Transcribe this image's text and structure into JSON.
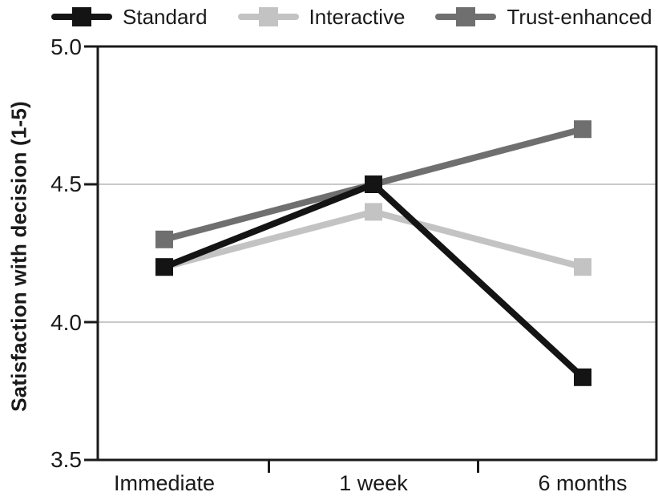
{
  "chart_data": {
    "type": "line",
    "title": "",
    "xlabel": "",
    "ylabel": "Satisfaction with decision (1-5)",
    "categories": [
      "Immediate",
      "1 week",
      "6 months"
    ],
    "series": [
      {
        "name": "Standard",
        "color": "#141414",
        "values": [
          4.2,
          4.5,
          3.8
        ]
      },
      {
        "name": "Interactive",
        "color": "#c3c3c3",
        "values": [
          4.2,
          4.4,
          4.2
        ]
      },
      {
        "name": "Trust-enhanced",
        "color": "#6f6f6f",
        "values": [
          4.3,
          4.5,
          4.7
        ]
      }
    ],
    "ylim": [
      3.5,
      5.0
    ],
    "y_ticks": [
      5.0,
      4.5,
      4.0,
      3.5
    ],
    "y_tick_labels": [
      "5.0",
      "4.5",
      "4.0",
      "3.5"
    ],
    "grid": "horizontal",
    "legend_position": "top",
    "marker": "square",
    "colors": {
      "axis": "#1a1a1a",
      "grid": "#c9c9c9",
      "text": "#1a1a1a",
      "background": "#ffffff"
    }
  }
}
